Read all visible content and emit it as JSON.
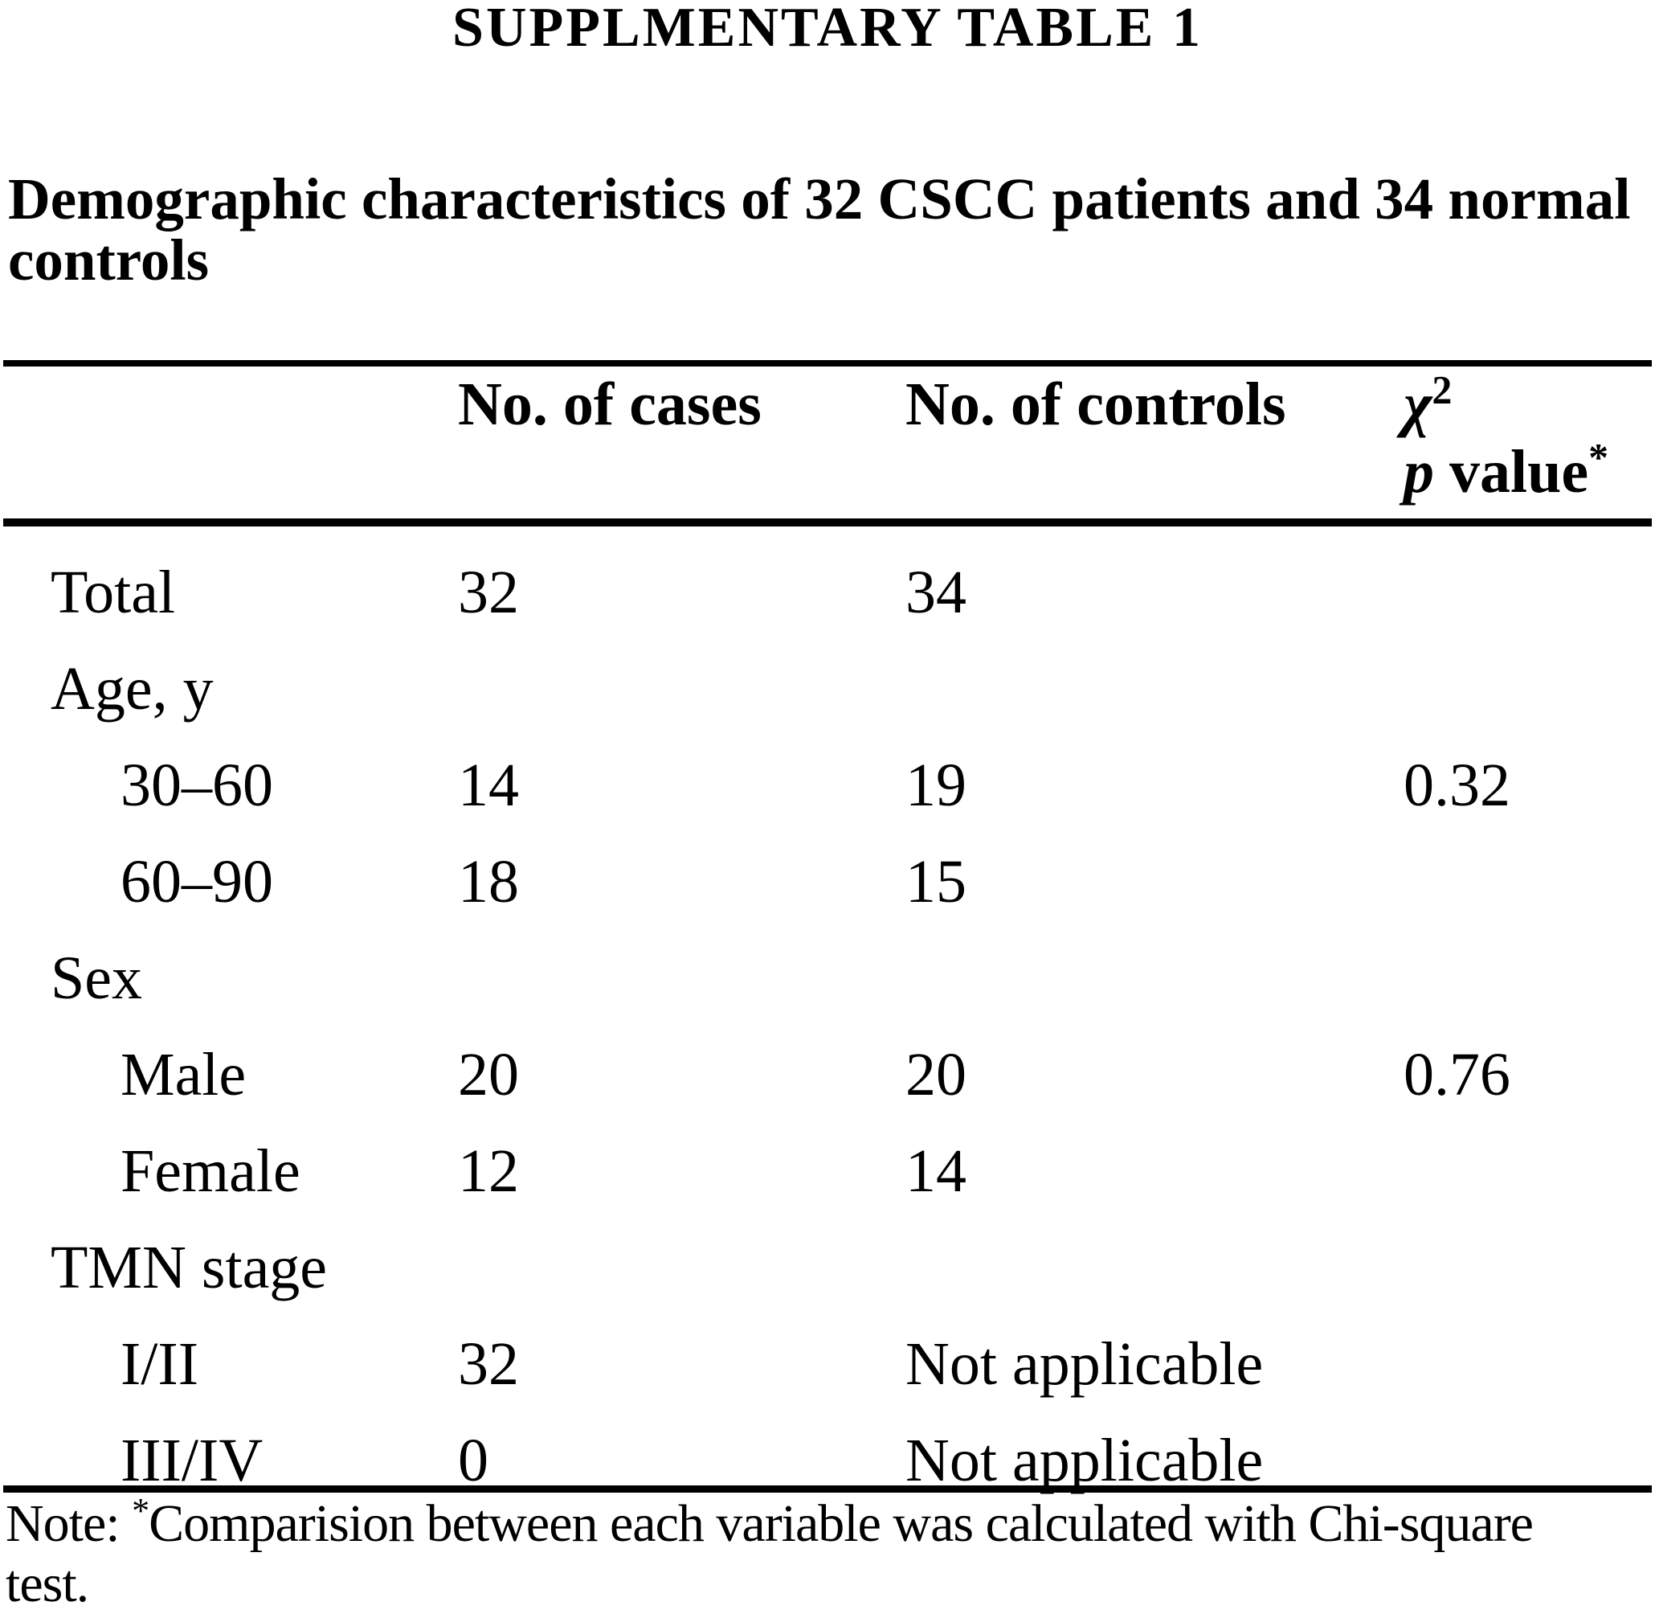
{
  "title": "SUPPLMENTARY TABLE 1",
  "subtitle": {
    "line1": "Demographic characteristics of 32 CSCC patients and 34 normal",
    "line2": "controls"
  },
  "table": {
    "header": {
      "cases": "No. of cases",
      "controls": "No. of controls",
      "chi_symbol": "χ",
      "chi_sup": "2",
      "p_italic": "p",
      "p_rest": " value",
      "p_sup": "*"
    },
    "rows": [
      {
        "label": "Total",
        "cases": "32",
        "controls": "34",
        "p": ""
      },
      {
        "label": "Age, y",
        "cases": "",
        "controls": "",
        "p": ""
      },
      {
        "label": "30–60",
        "cases": "14",
        "controls": "19",
        "p": "0.32"
      },
      {
        "label": "60–90",
        "cases": "18",
        "controls": "15",
        "p": ""
      },
      {
        "label": "Sex",
        "cases": "",
        "controls": "",
        "p": ""
      },
      {
        "label": "Male",
        "cases": "20",
        "controls": "20",
        "p": "0.76"
      },
      {
        "label": "Female",
        "cases": "12",
        "controls": "14",
        "p": ""
      },
      {
        "label": "TMN stage",
        "cases": "",
        "controls": "",
        "p": ""
      },
      {
        "label": "I/II",
        "cases": "32",
        "controls": "Not applicable",
        "p": ""
      },
      {
        "label": "III/IV",
        "cases": "0",
        "controls": "Not applicable",
        "p": ""
      }
    ]
  },
  "note": {
    "prefix": "Note: ",
    "star": "*",
    "body": "Comparision between each variable was calculated with Chi-square",
    "line2": "test."
  },
  "colors": {
    "ink": "#000000",
    "paper": "#ffffff"
  }
}
